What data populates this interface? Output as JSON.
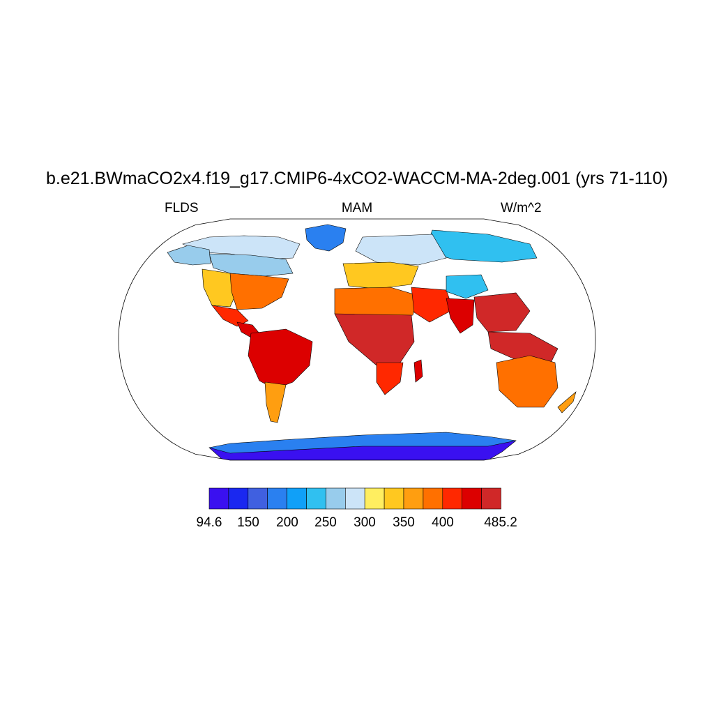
{
  "title": "b.e21.BWmaCO2x4.f19_g17.CMIP6-4xCO2-WACCM-MA-2deg.001 (yrs 71-110)",
  "left_string": "FLDS",
  "center_string": "MAM",
  "right_string": "W/m^2",
  "colors": {
    "outline": "#000000",
    "ocean": "#ffffff",
    "missing": "#ffffff"
  },
  "chart_data": {
    "type": "map",
    "projection": "Robinson",
    "variable": "FLDS",
    "season": "MAM",
    "units": "W/m^2",
    "colorbar": {
      "colors": [
        "#3a10f0",
        "#1a28f0",
        "#4060e0",
        "#2a80f0",
        "#10a0f8",
        "#30c0f0",
        "#98ccec",
        "#cce4f8",
        "#ffee60",
        "#ffc820",
        "#ff9e10",
        "#ff7000",
        "#ff2800",
        "#dc0000",
        "#d02828"
      ],
      "labels": [
        {
          "text": "94.6",
          "boundary": 0
        },
        {
          "text": "150",
          "boundary": 1
        },
        {
          "text": "200",
          "boundary": 2
        },
        {
          "text": "250",
          "boundary": 3
        },
        {
          "text": "300",
          "boundary": 4
        },
        {
          "text": "350",
          "boundary": 5
        },
        {
          "text": "400",
          "boundary": 6
        },
        {
          "text": "485.2",
          "boundary": 8
        }
      ]
    },
    "regions": [
      {
        "name": "Antarctica",
        "level": 0
      },
      {
        "name": "Antarctica coast",
        "level": 3
      },
      {
        "name": "Greenland",
        "level": 3
      },
      {
        "name": "Arctic Canada",
        "level": 7
      },
      {
        "name": "Northern Canada",
        "level": 6
      },
      {
        "name": "Alaska",
        "level": 6
      },
      {
        "name": "Western US",
        "level": 9
      },
      {
        "name": "Eastern US",
        "level": 11
      },
      {
        "name": "Mexico",
        "level": 12
      },
      {
        "name": "Central America",
        "level": 13
      },
      {
        "name": "Amazon",
        "level": 13
      },
      {
        "name": "Southern South America",
        "level": 10
      },
      {
        "name": "Siberia",
        "level": 5
      },
      {
        "name": "Northern Eurasia",
        "level": 7
      },
      {
        "name": "Europe",
        "level": 9
      },
      {
        "name": "Sahara",
        "level": 11
      },
      {
        "name": "Tropical Africa",
        "level": 14
      },
      {
        "name": "Southern Africa",
        "level": 12
      },
      {
        "name": "Arabia",
        "level": 12
      },
      {
        "name": "Tibetan Plateau",
        "level": 5
      },
      {
        "name": "India",
        "level": 13
      },
      {
        "name": "Southeast Asia",
        "level": 14
      },
      {
        "name": "Maritime Continent",
        "level": 14
      },
      {
        "name": "Australia",
        "level": 11
      },
      {
        "name": "New Zealand",
        "level": 10
      },
      {
        "name": "Madagascar",
        "level": 13
      }
    ]
  }
}
